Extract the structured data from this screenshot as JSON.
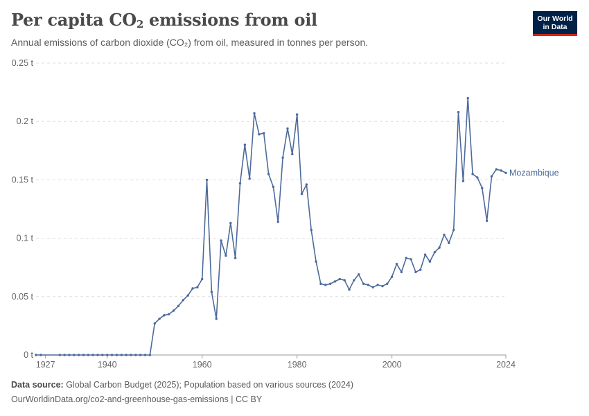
{
  "header": {
    "title_main": "Per capita CO",
    "title_sub": "2",
    "title_rest": " emissions from oil",
    "subtitle": "Annual emissions of carbon dioxide (CO₂) from oil, measured in tonnes per person."
  },
  "logo": {
    "line1": "Our World",
    "line2": "in Data"
  },
  "footer": {
    "source_label": "Data source:",
    "source_text": " Global Carbon Budget (2025); Population based on various sources (2024)",
    "url_text": "OurWorldinData.org/co2-and-greenhouse-gas-emissions | CC BY"
  },
  "colors": {
    "series": "#4c6a9c",
    "grid": "#dddddd",
    "axis_text": "#666666"
  },
  "chart_data": {
    "type": "line",
    "title": "Per capita CO₂ emissions from oil",
    "subtitle": "Annual emissions of carbon dioxide (CO₂) from oil, measured in tonnes per person.",
    "ylim": [
      0,
      0.25
    ],
    "xlim": [
      1925,
      2024
    ],
    "y_ticks": [
      0,
      0.05,
      0.1,
      0.15,
      0.2,
      0.25
    ],
    "y_tick_labels": [
      "0 t",
      "0.05 t",
      "0.1 t",
      "0.15 t",
      "0.2 t",
      "0.25 t"
    ],
    "x_ticks": [
      1927,
      1940,
      1960,
      1980,
      2000,
      2024
    ],
    "x_tick_labels": [
      "1927",
      "1940",
      "1960",
      "1980",
      "2000",
      "2024"
    ],
    "grid": "horizontal dashed",
    "legend": "inline label at line end",
    "series": [
      {
        "name": "Mozambique",
        "x": [
          1925,
          1926,
          1930,
          1931,
          1932,
          1933,
          1934,
          1935,
          1936,
          1937,
          1938,
          1939,
          1940,
          1941,
          1942,
          1943,
          1944,
          1945,
          1946,
          1947,
          1948,
          1949,
          1950,
          1951,
          1952,
          1953,
          1954,
          1955,
          1956,
          1957,
          1958,
          1959,
          1960,
          1961,
          1962,
          1963,
          1964,
          1965,
          1966,
          1967,
          1968,
          1969,
          1970,
          1971,
          1972,
          1973,
          1974,
          1975,
          1976,
          1977,
          1978,
          1979,
          1980,
          1981,
          1982,
          1983,
          1984,
          1985,
          1986,
          1987,
          1988,
          1989,
          1990,
          1991,
          1992,
          1993,
          1994,
          1995,
          1996,
          1997,
          1998,
          1999,
          2000,
          2001,
          2002,
          2003,
          2004,
          2005,
          2006,
          2007,
          2008,
          2009,
          2010,
          2011,
          2012,
          2013,
          2014,
          2015,
          2016,
          2017,
          2018,
          2019,
          2020,
          2021,
          2022,
          2023,
          2024
        ],
        "values": [
          0,
          0,
          0,
          0,
          0,
          0,
          0,
          0,
          0,
          0,
          0,
          0,
          0,
          0,
          0,
          0,
          0,
          0,
          0,
          0,
          0,
          0,
          0.027,
          0.031,
          0.034,
          0.035,
          0.038,
          0.042,
          0.047,
          0.051,
          0.057,
          0.058,
          0.065,
          0.15,
          0.054,
          0.031,
          0.098,
          0.085,
          0.113,
          0.083,
          0.147,
          0.18,
          0.151,
          0.207,
          0.189,
          0.19,
          0.155,
          0.144,
          0.114,
          0.169,
          0.194,
          0.172,
          0.206,
          0.138,
          0.146,
          0.107,
          0.08,
          0.061,
          0.06,
          0.061,
          0.063,
          0.065,
          0.064,
          0.056,
          0.064,
          0.069,
          0.061,
          0.06,
          0.058,
          0.06,
          0.059,
          0.061,
          0.067,
          0.078,
          0.071,
          0.083,
          0.082,
          0.071,
          0.073,
          0.086,
          0.08,
          0.088,
          0.092,
          0.103,
          0.096,
          0.107,
          0.208,
          0.149,
          0.22,
          0.155,
          0.152,
          0.143,
          0.115,
          0.153,
          0.159,
          0.158,
          0.156
        ]
      }
    ]
  }
}
